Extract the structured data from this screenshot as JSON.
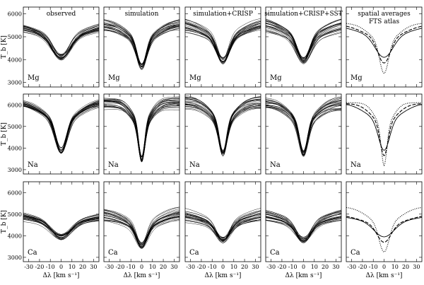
{
  "chart_data": {
    "type": "line",
    "description_ref": "Grid of brightness-temperature line profiles",
    "columns": [
      {
        "id": "observed",
        "title": "observed"
      },
      {
        "id": "simulation",
        "title": "simulation"
      },
      {
        "id": "sim_crisp",
        "title": "simulation+CRISP"
      },
      {
        "id": "sim_crisp_sst",
        "title": "simulation+CRISP+SST"
      },
      {
        "id": "spatial_avg",
        "title": "spatial averages",
        "subtitle": "FTS atlas"
      }
    ],
    "rows": [
      {
        "id": "mg",
        "species": "Mg",
        "ylim": [
          2800,
          6300
        ],
        "yticks": [
          3000,
          4000,
          5000,
          6000
        ],
        "continuum": 5600,
        "core": 4100,
        "width": 8
      },
      {
        "id": "na",
        "species": "Na",
        "ylim": [
          2800,
          6500
        ],
        "yticks": [
          3000,
          4000,
          5000,
          6000
        ],
        "continuum": 6100,
        "core": 3900,
        "width": 5
      },
      {
        "id": "ca",
        "species": "Ca",
        "ylim": [
          2800,
          6500
        ],
        "yticks": [
          3000,
          4000,
          5000,
          6000
        ],
        "continuum": 5050,
        "core": 3950,
        "width": 9
      }
    ],
    "xlim": [
      -35,
      35
    ],
    "xticks": [
      -30,
      -20,
      -10,
      0,
      10,
      20,
      30
    ],
    "xlabel": "Δλ [km s⁻¹]",
    "ylabel": "T_b [K]",
    "n_profiles": 24,
    "legend": [
      "spatial average (dashed)",
      "FTS atlas (dotted)"
    ]
  }
}
